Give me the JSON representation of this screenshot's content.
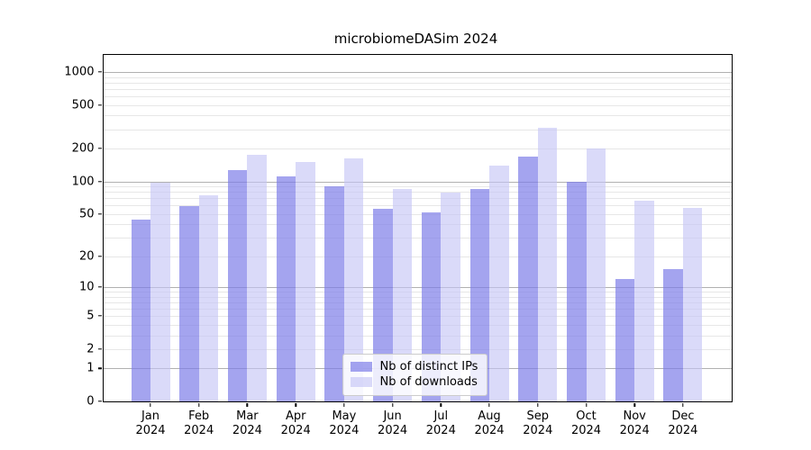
{
  "title": "microbiomeDASim 2024",
  "chart_data": {
    "type": "bar",
    "title": "microbiomeDASim 2024",
    "categories": [
      "Jan",
      "Feb",
      "Mar",
      "Apr",
      "May",
      "Jun",
      "Jul",
      "Aug",
      "Sep",
      "Oct",
      "Nov",
      "Dec"
    ],
    "category_year": "2024",
    "series": [
      {
        "name": "Nb of distinct IPs",
        "color": "#7d7de8",
        "alpha": 0.7,
        "values": [
          44,
          59,
          126,
          112,
          90,
          56,
          52,
          85,
          170,
          99,
          12,
          15
        ]
      },
      {
        "name": "Nb of downloads",
        "color": "#c3c3f5",
        "alpha": 0.62,
        "values": [
          97,
          74,
          175,
          152,
          162,
          85,
          79,
          139,
          310,
          200,
          66,
          57
        ]
      }
    ],
    "yscale": "log1p",
    "ylim": [
      0,
      1430
    ],
    "y_ticks": [
      0,
      1,
      2,
      5,
      10,
      20,
      50,
      100,
      200,
      500,
      1000
    ],
    "xlabel": "",
    "ylabel": "",
    "grid": "both",
    "legend_position": "lower center"
  },
  "legend": {
    "items": [
      {
        "label": "Nb of distinct IPs"
      },
      {
        "label": "Nb of downloads"
      }
    ]
  }
}
